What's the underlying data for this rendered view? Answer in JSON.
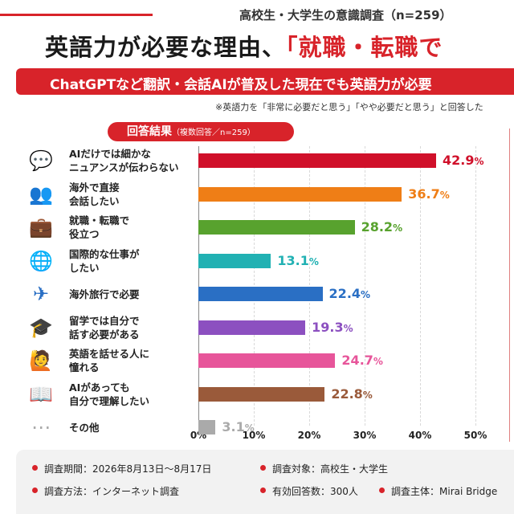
{
  "header": {
    "survey_title": "高校生・大学生の意識調査（n=259）",
    "title_part1": "英語力が必要な理由、",
    "title_part2": "「就職・転職で",
    "banner": "ChatGPTなど翻訳・会話AIが普及した現在でも英語力が必要",
    "note": "※英語力を「非常に必要だと思う」「やや必要だと思う」と回答した"
  },
  "section": {
    "label": "回答結果",
    "sub": "（複数回答／n=259）"
  },
  "chart_data": {
    "type": "bar",
    "orientation": "horizontal",
    "categories": [
      "AIだけでは細かな\nニュアンスが伝わらない",
      "海外で直接\n会話したい",
      "就職・転職で\n役立つ",
      "国際的な仕事が\nしたい",
      "海外旅行で必要",
      "留学では自分で\n話す必要がある",
      "英語を話せる人に\n憧れる",
      "AIがあっても\n自分で理解したい",
      "その他"
    ],
    "values": [
      42.9,
      36.7,
      28.2,
      13.1,
      22.4,
      19.3,
      24.7,
      22.8,
      3.1
    ],
    "value_labels": [
      "42.9",
      "36.7",
      "28.2",
      "13.1",
      "22.4",
      "19.3",
      "24.7",
      "22.8",
      "3.1"
    ],
    "unit": "%",
    "colors": [
      "#d0102a",
      "#ef7e16",
      "#58a22e",
      "#21b1b3",
      "#2a6fc4",
      "#8c50c0",
      "#e7559a",
      "#9a5a3a",
      "#aaaaaa"
    ],
    "icons": [
      "speech-bubble-icon",
      "people-icon",
      "briefcase-icon",
      "globe-icon",
      "airplane-icon",
      "graduation-cap-icon",
      "admire-person-icon",
      "book-icon",
      "more-icon"
    ],
    "icon_glyphs": [
      "💬",
      "👥",
      "💼",
      "🌐",
      "✈",
      "🎓",
      "🙋",
      "📖",
      "⋯"
    ],
    "x_ticks": [
      "0%",
      "10%",
      "20%",
      "30%",
      "40%",
      "50%"
    ],
    "xlim": [
      0,
      50
    ],
    "grid": true
  },
  "footer": {
    "period": "調査期間：2026年8月13日〜8月17日",
    "method": "調査方法：インターネット調査",
    "target": "調査対象：高校生・大学生",
    "valid": "有効回答数：300人",
    "org": "調査主体：Mirai Bridge"
  }
}
